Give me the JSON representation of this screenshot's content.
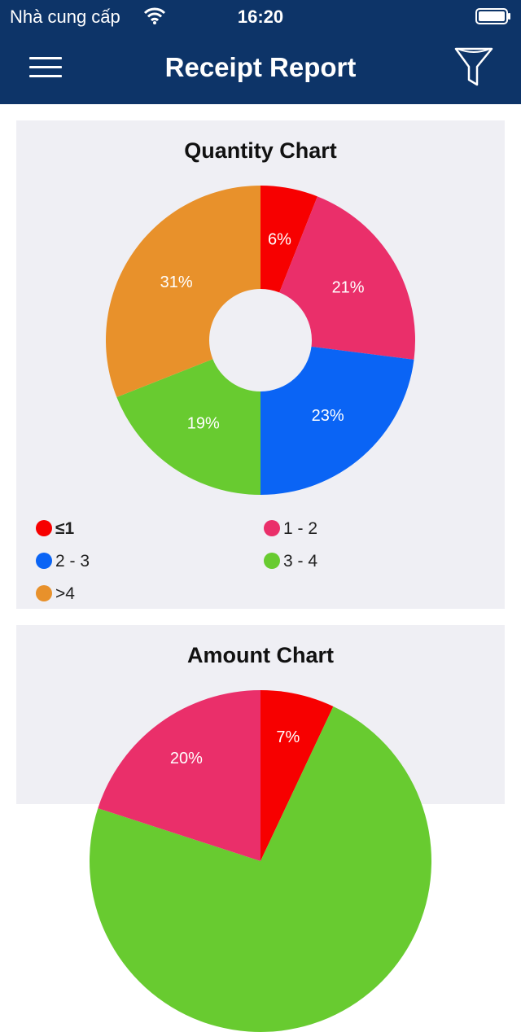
{
  "status_bar": {
    "carrier": "Nhà cung cấp",
    "time": "16:20"
  },
  "nav": {
    "title": "Receipt Report",
    "menu_icon": "hamburger-menu-icon",
    "filter_icon": "filter-funnel-icon"
  },
  "quantity_chart": {
    "title": "Quantity Chart",
    "legend": [
      {
        "label": "≤1",
        "color": "#f70000"
      },
      {
        "label": "1 - 2",
        "color": "#ea2f6a"
      },
      {
        "label": "2 - 3",
        "color": "#0a64f5"
      },
      {
        "label": "3 - 4",
        "color": "#68cb30"
      },
      {
        "label": ">4",
        "color": "#e8912b"
      }
    ]
  },
  "amount_chart": {
    "title": "Amount Chart"
  },
  "chart_data": [
    {
      "type": "pie",
      "title": "Quantity Chart",
      "donut": true,
      "categories": [
        "≤1",
        "1 - 2",
        "2 - 3",
        "3 - 4",
        ">4"
      ],
      "values": [
        6,
        21,
        23,
        19,
        31
      ],
      "labels": [
        "6%",
        "21%",
        "23%",
        "19%",
        "31%"
      ],
      "colors": [
        "#f70000",
        "#ea2f6a",
        "#0a64f5",
        "#68cb30",
        "#e8912b"
      ],
      "legend": "bottom"
    },
    {
      "type": "pie",
      "title": "Amount Chart",
      "partial_visible_slices": [
        {
          "label": "7%",
          "value": 7,
          "color": "#f70000"
        },
        {
          "label": "",
          "color": "#68cb30"
        },
        {
          "label": "20%",
          "value": 20,
          "color": "#ea2f6a"
        }
      ]
    }
  ]
}
